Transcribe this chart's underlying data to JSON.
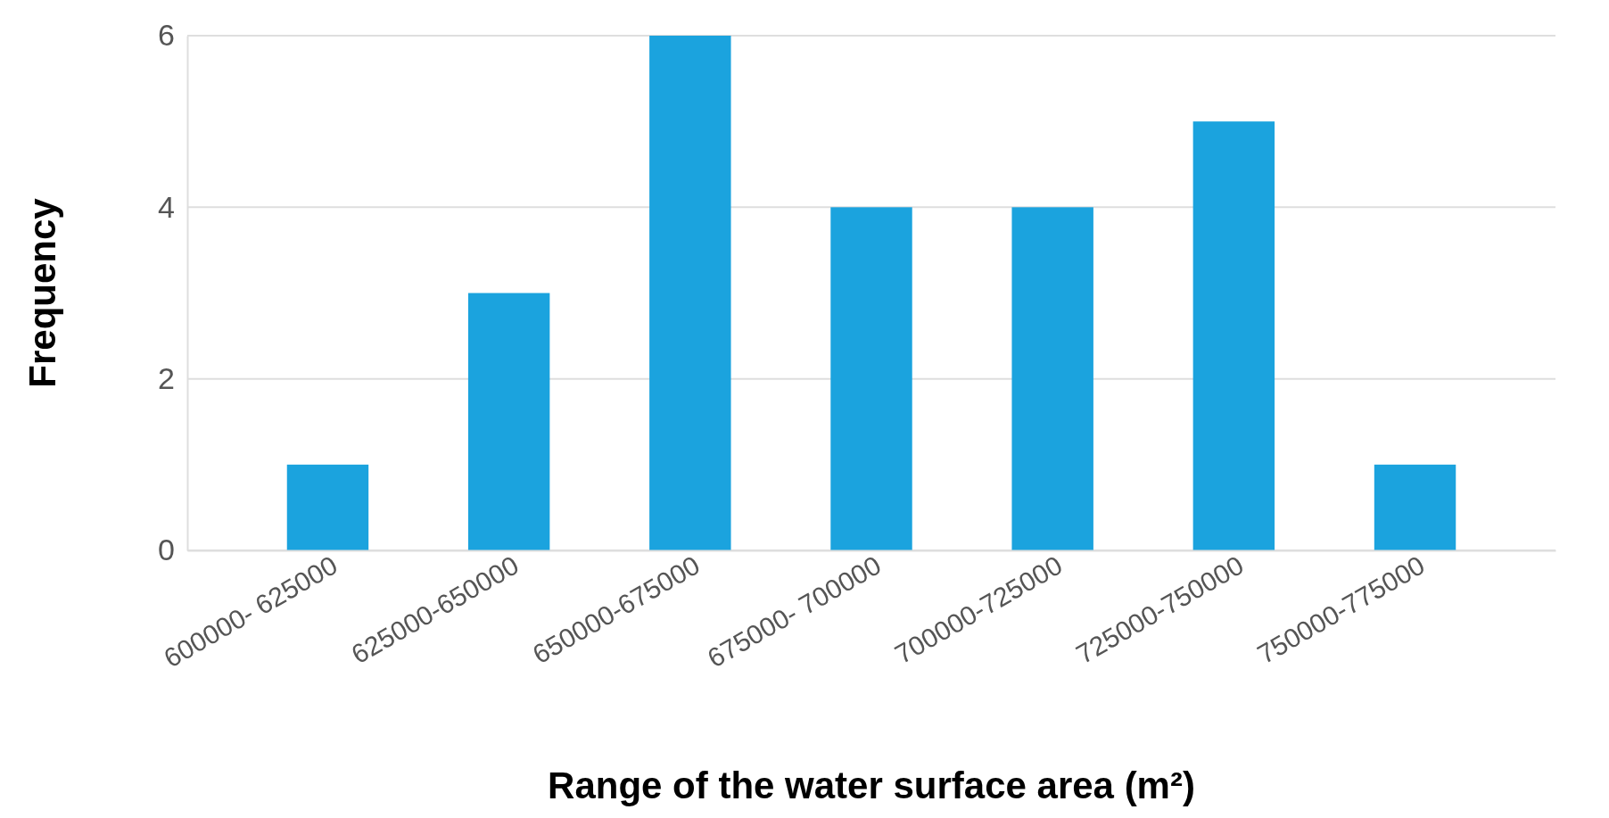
{
  "chart_data": {
    "type": "bar",
    "xlabel": "Range of the water surface area (m²)",
    "ylabel": "Frequency",
    "categories": [
      "600000- 625000",
      "625000-650000",
      "650000-675000",
      "675000- 700000",
      "700000-725000",
      "725000-750000",
      "750000-775000"
    ],
    "values": [
      1,
      3,
      6,
      4,
      4,
      5,
      1
    ],
    "color": "#1ba3de",
    "ylim": [
      0,
      6
    ],
    "yticks": [
      0,
      2,
      4,
      6
    ],
    "grid": "y"
  }
}
